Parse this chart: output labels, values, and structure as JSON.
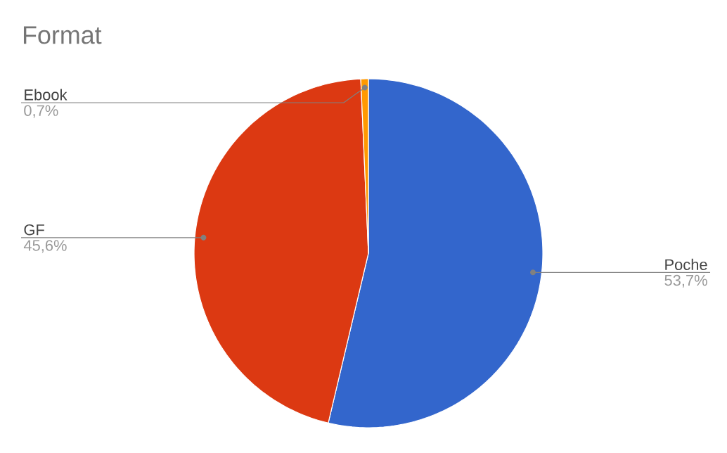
{
  "chart_data": {
    "type": "pie",
    "title": "Format",
    "categories": [
      "Poche",
      "GF",
      "Ebook"
    ],
    "values": [
      53.7,
      45.6,
      0.7
    ],
    "value_labels": [
      "53,7%",
      "45,6%",
      "0,7%"
    ],
    "colors": [
      "#3366cc",
      "#dc3912",
      "#ff9900"
    ]
  }
}
